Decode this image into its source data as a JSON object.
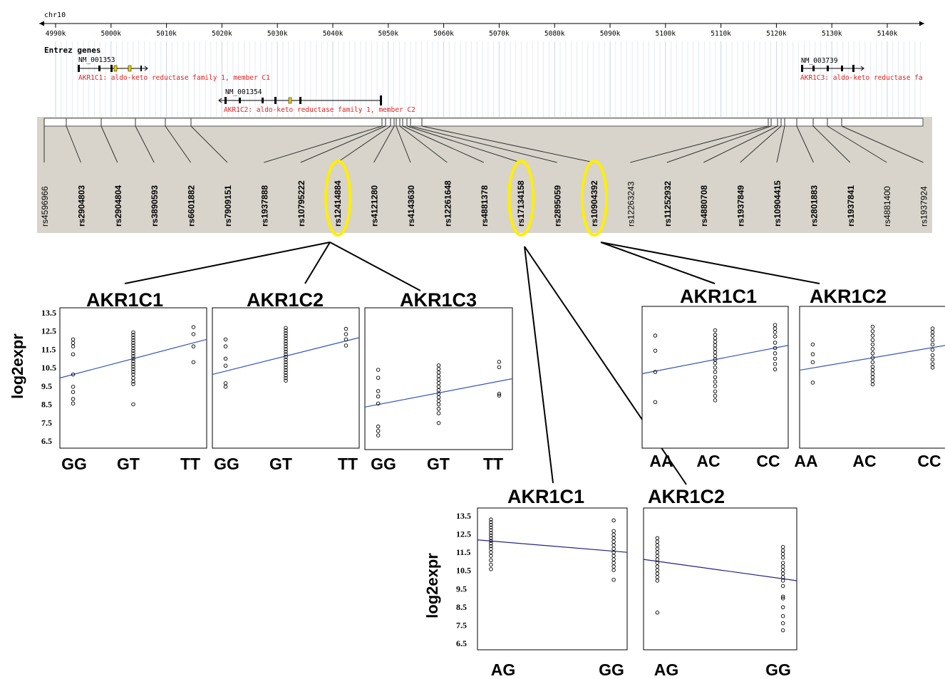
{
  "browser": {
    "chromosome": "chr10",
    "ruler_ticks": [
      "4990k",
      "5000k",
      "5010k",
      "5020k",
      "5030k",
      "5040k",
      "5050k",
      "5060k",
      "5070k",
      "5080k",
      "5090k",
      "5100k",
      "5110k",
      "5120k",
      "5130k",
      "5140k"
    ],
    "track_title": "Entrez genes",
    "genes": [
      {
        "accession": "NM_001353",
        "label": "AKR1C1: aldo-keto reductase family 1, member C1"
      },
      {
        "accession": "NM_001354",
        "label": "AKR1C2: aldo-keto reductase family 1, member C2"
      },
      {
        "accession": "NM_003739",
        "label": "AKR1C3: aldo-keto reductase fa"
      }
    ],
    "snps": [
      {
        "id": "rs4596966",
        "bold": false
      },
      {
        "id": "rs2904803",
        "bold": true
      },
      {
        "id": "rs2904804",
        "bold": true
      },
      {
        "id": "rs3890593",
        "bold": true
      },
      {
        "id": "rs6601882",
        "bold": true
      },
      {
        "id": "rs7909151",
        "bold": true
      },
      {
        "id": "rs1937888",
        "bold": true
      },
      {
        "id": "rs10795222",
        "bold": true
      },
      {
        "id": "rs12414884",
        "bold": true,
        "highlighted": true
      },
      {
        "id": "rs4121280",
        "bold": true
      },
      {
        "id": "rs4143630",
        "bold": true
      },
      {
        "id": "rs12261648",
        "bold": true
      },
      {
        "id": "rs4881378",
        "bold": true
      },
      {
        "id": "rs17134158",
        "bold": true,
        "highlighted": true
      },
      {
        "id": "rs2895059",
        "bold": true
      },
      {
        "id": "rs10904392",
        "bold": true,
        "highlighted": true
      },
      {
        "id": "rs12263243",
        "bold": false
      },
      {
        "id": "rs11252932",
        "bold": true
      },
      {
        "id": "rs4880708",
        "bold": true
      },
      {
        "id": "rs1937849",
        "bold": true
      },
      {
        "id": "rs10904415",
        "bold": true
      },
      {
        "id": "rs2801883",
        "bold": true
      },
      {
        "id": "rs1937841",
        "bold": true
      },
      {
        "id": "rs4881400",
        "bold": false
      },
      {
        "id": "rs1937924",
        "bold": false
      }
    ],
    "highlight_color": "#ffee00"
  },
  "y_axis_label": "log2expr",
  "y_tick_labels": [
    "13.5",
    "12.5",
    "11.5",
    "10.5",
    "9.5",
    "8.5",
    "7.5",
    "6.5"
  ],
  "chart_data": [
    {
      "type": "scatter",
      "title": "AKR1C1",
      "snp": "rs12414884",
      "categories": [
        "GG",
        "GT",
        "TT"
      ],
      "ylim": [
        6.0,
        14.0
      ],
      "points": [
        [
          0,
          12.2
        ],
        [
          0,
          12.0
        ],
        [
          0,
          11.8
        ],
        [
          0,
          11.35
        ],
        [
          0,
          10.2
        ],
        [
          0,
          9.5
        ],
        [
          0,
          9.2
        ],
        [
          0,
          8.8
        ],
        [
          0,
          8.55
        ],
        [
          1,
          12.6
        ],
        [
          1,
          12.45
        ],
        [
          1,
          12.3
        ],
        [
          1,
          12.15
        ],
        [
          1,
          12.0
        ],
        [
          1,
          11.85
        ],
        [
          1,
          11.7
        ],
        [
          1,
          11.55
        ],
        [
          1,
          11.4
        ],
        [
          1,
          11.25
        ],
        [
          1,
          11.1
        ],
        [
          1,
          10.95
        ],
        [
          1,
          10.8
        ],
        [
          1,
          10.65
        ],
        [
          1,
          10.5
        ],
        [
          1,
          10.35
        ],
        [
          1,
          10.2
        ],
        [
          1,
          10.0
        ],
        [
          1,
          9.8
        ],
        [
          1,
          9.65
        ],
        [
          1,
          8.5
        ],
        [
          2,
          12.9
        ],
        [
          2,
          12.5
        ],
        [
          2,
          11.8
        ],
        [
          2,
          10.9
        ]
      ],
      "fit": [
        10.0,
        12.2
      ],
      "line_color": "#3355bb"
    },
    {
      "type": "scatter",
      "title": "AKR1C2",
      "snp": "rs12414884",
      "categories": [
        "GG",
        "GT",
        "TT"
      ],
      "ylim": [
        6.0,
        14.0
      ],
      "points": [
        [
          0,
          12.2
        ],
        [
          0,
          11.8
        ],
        [
          0,
          11.1
        ],
        [
          0,
          10.7
        ],
        [
          0,
          9.7
        ],
        [
          0,
          9.5
        ],
        [
          1,
          12.85
        ],
        [
          1,
          12.7
        ],
        [
          1,
          12.55
        ],
        [
          1,
          12.4
        ],
        [
          1,
          12.25
        ],
        [
          1,
          12.1
        ],
        [
          1,
          11.95
        ],
        [
          1,
          11.8
        ],
        [
          1,
          11.65
        ],
        [
          1,
          11.5
        ],
        [
          1,
          11.35
        ],
        [
          1,
          11.2
        ],
        [
          1,
          11.05
        ],
        [
          1,
          10.9
        ],
        [
          1,
          10.75
        ],
        [
          1,
          10.6
        ],
        [
          1,
          10.45
        ],
        [
          1,
          10.3
        ],
        [
          1,
          10.15
        ],
        [
          1,
          10.0
        ],
        [
          1,
          9.85
        ],
        [
          2,
          12.8
        ],
        [
          2,
          12.5
        ],
        [
          2,
          12.2
        ],
        [
          2,
          11.85
        ]
      ],
      "fit": [
        10.2,
        12.3
      ],
      "line_color": "#3355bb"
    },
    {
      "type": "scatter",
      "title": "AKR1C3",
      "snp": "rs12414884",
      "categories": [
        "GG",
        "GT",
        "TT"
      ],
      "ylim": [
        6.0,
        14.0
      ],
      "points": [
        [
          0,
          10.5
        ],
        [
          0,
          10.05
        ],
        [
          0,
          9.3
        ],
        [
          0,
          9.0
        ],
        [
          0,
          8.6
        ],
        [
          0,
          7.3
        ],
        [
          0,
          7.05
        ],
        [
          0,
          6.8
        ],
        [
          1,
          10.75
        ],
        [
          1,
          10.55
        ],
        [
          1,
          10.35
        ],
        [
          1,
          10.15
        ],
        [
          1,
          9.95
        ],
        [
          1,
          9.75
        ],
        [
          1,
          9.55
        ],
        [
          1,
          9.35
        ],
        [
          1,
          9.15
        ],
        [
          1,
          8.95
        ],
        [
          1,
          8.75
        ],
        [
          1,
          8.55
        ],
        [
          1,
          8.3
        ],
        [
          1,
          8.05
        ],
        [
          1,
          7.5
        ],
        [
          2,
          10.95
        ],
        [
          2,
          10.65
        ],
        [
          2,
          9.15
        ],
        [
          2,
          9.05
        ]
      ],
      "fit": [
        8.4,
        10.0
      ],
      "line_color": "#3355bb"
    },
    {
      "type": "scatter",
      "title": "AKR1C1",
      "snp": "rs10904392",
      "categories": [
        "AA",
        "AC",
        "CC"
      ],
      "ylim": [
        6.0,
        14.0
      ],
      "points": [
        [
          0,
          12.35
        ],
        [
          0,
          11.5
        ],
        [
          0,
          10.3
        ],
        [
          0,
          8.6
        ],
        [
          1,
          12.65
        ],
        [
          1,
          12.4
        ],
        [
          1,
          12.2
        ],
        [
          1,
          12.0
        ],
        [
          1,
          11.8
        ],
        [
          1,
          11.6
        ],
        [
          1,
          11.4
        ],
        [
          1,
          11.2
        ],
        [
          1,
          11.0
        ],
        [
          1,
          10.8
        ],
        [
          1,
          10.55
        ],
        [
          1,
          10.3
        ],
        [
          1,
          10.0
        ],
        [
          1,
          9.75
        ],
        [
          1,
          9.5
        ],
        [
          1,
          9.2
        ],
        [
          1,
          8.95
        ],
        [
          1,
          8.7
        ],
        [
          2,
          12.95
        ],
        [
          2,
          12.75
        ],
        [
          2,
          12.55
        ],
        [
          2,
          12.3
        ],
        [
          2,
          11.95
        ],
        [
          2,
          11.65
        ],
        [
          2,
          11.35
        ],
        [
          2,
          11.05
        ],
        [
          2,
          10.75
        ],
        [
          2,
          10.45
        ]
      ],
      "fit": [
        10.2,
        11.8
      ],
      "line_color": "#3355bb"
    },
    {
      "type": "scatter",
      "title": "AKR1C2",
      "snp": "rs10904392",
      "categories": [
        "AA",
        "AC",
        "CC"
      ],
      "ylim": [
        6.0,
        14.0
      ],
      "points": [
        [
          0,
          11.85
        ],
        [
          0,
          11.3
        ],
        [
          0,
          10.85
        ],
        [
          0,
          9.7
        ],
        [
          1,
          12.85
        ],
        [
          1,
          12.6
        ],
        [
          1,
          12.35
        ],
        [
          1,
          12.1
        ],
        [
          1,
          11.85
        ],
        [
          1,
          11.6
        ],
        [
          1,
          11.35
        ],
        [
          1,
          11.1
        ],
        [
          1,
          10.85
        ],
        [
          1,
          10.6
        ],
        [
          1,
          10.4
        ],
        [
          1,
          10.2
        ],
        [
          1,
          10.0
        ],
        [
          1,
          9.8
        ],
        [
          1,
          9.6
        ],
        [
          2,
          12.75
        ],
        [
          2,
          12.55
        ],
        [
          2,
          12.35
        ],
        [
          2,
          12.1
        ],
        [
          2,
          11.85
        ],
        [
          2,
          11.55
        ],
        [
          2,
          11.25
        ],
        [
          2,
          11.0
        ],
        [
          2,
          10.75
        ],
        [
          2,
          10.55
        ]
      ],
      "fit": [
        10.4,
        11.8
      ],
      "line_color": "#3355bb"
    },
    {
      "type": "scatter",
      "title": "AKR1C1",
      "snp": "rs17134158",
      "categories": [
        "AG",
        "GG"
      ],
      "ylim": [
        6.0,
        14.0
      ],
      "points": [
        [
          0,
          13.35
        ],
        [
          0,
          13.2
        ],
        [
          0,
          13.05
        ],
        [
          0,
          12.9
        ],
        [
          0,
          12.75
        ],
        [
          0,
          12.6
        ],
        [
          0,
          12.45
        ],
        [
          0,
          12.3
        ],
        [
          0,
          12.15
        ],
        [
          0,
          12.0
        ],
        [
          0,
          11.85
        ],
        [
          0,
          11.7
        ],
        [
          0,
          11.5
        ],
        [
          0,
          11.3
        ],
        [
          0,
          11.05
        ],
        [
          0,
          10.8
        ],
        [
          0,
          10.55
        ],
        [
          1,
          13.3
        ],
        [
          1,
          12.7
        ],
        [
          1,
          12.5
        ],
        [
          1,
          12.3
        ],
        [
          1,
          12.1
        ],
        [
          1,
          11.9
        ],
        [
          1,
          11.7
        ],
        [
          1,
          11.5
        ],
        [
          1,
          11.3
        ],
        [
          1,
          11.1
        ],
        [
          1,
          10.9
        ],
        [
          1,
          10.7
        ],
        [
          1,
          10.5
        ],
        [
          1,
          9.95
        ]
      ],
      "fit": [
        12.2,
        11.5
      ],
      "line_color": "#222288"
    },
    {
      "type": "scatter",
      "title": "AKR1C2",
      "snp": "rs17134158",
      "categories": [
        "AG",
        "GG"
      ],
      "ylim": [
        6.0,
        14.0
      ],
      "points": [
        [
          0,
          12.3
        ],
        [
          0,
          12.1
        ],
        [
          0,
          11.9
        ],
        [
          0,
          11.7
        ],
        [
          0,
          11.5
        ],
        [
          0,
          11.3
        ],
        [
          0,
          11.1
        ],
        [
          0,
          10.9
        ],
        [
          0,
          10.7
        ],
        [
          0,
          10.5
        ],
        [
          0,
          10.3
        ],
        [
          0,
          10.1
        ],
        [
          0,
          9.9
        ],
        [
          0,
          8.1
        ],
        [
          1,
          11.8
        ],
        [
          1,
          11.6
        ],
        [
          1,
          11.4
        ],
        [
          1,
          11.2
        ],
        [
          1,
          10.9
        ],
        [
          1,
          10.7
        ],
        [
          1,
          10.5
        ],
        [
          1,
          10.3
        ],
        [
          1,
          10.1
        ],
        [
          1,
          9.9
        ],
        [
          1,
          9.6
        ],
        [
          1,
          9.0
        ],
        [
          1,
          8.9
        ],
        [
          1,
          8.4
        ],
        [
          1,
          7.9
        ],
        [
          1,
          7.5
        ],
        [
          1,
          7.1
        ]
      ],
      "fit": [
        11.1,
        9.9
      ],
      "line_color": "#222288"
    }
  ]
}
